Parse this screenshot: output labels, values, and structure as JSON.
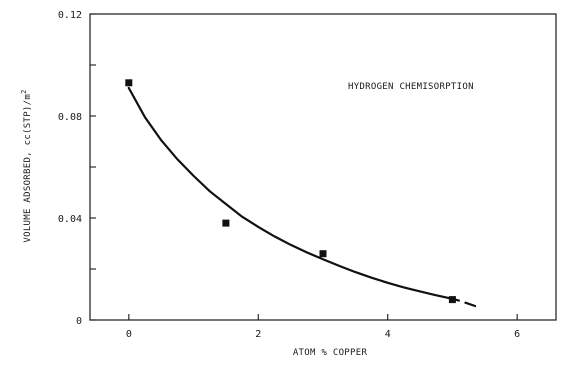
{
  "chart_data": {
    "type": "scatter",
    "xlabel": "ATOM % COPPER",
    "ylabel": "VOLUME ADSORBED, cc(STP)/m",
    "ylabel_superscript": "2",
    "annotation": "HYDROGEN CHEMISORPTION",
    "xlim": [
      -0.6,
      6.6
    ],
    "ylim": [
      0,
      0.12
    ],
    "x_ticks": [
      0,
      2,
      4,
      6
    ],
    "x_tick_labels": [
      "0",
      "2",
      "4",
      "6"
    ],
    "y_ticks": [
      0,
      0.02,
      0.04,
      0.06,
      0.08,
      0.1,
      0.12
    ],
    "y_tick_labels": [
      "0",
      "",
      "0.04",
      "",
      "0.08",
      "",
      "0.12"
    ],
    "grid": false,
    "legend": "none",
    "series": [
      {
        "kind": "points",
        "marker": "square",
        "x": [
          0,
          1.5,
          3.0,
          5.0
        ],
        "y": [
          0.093,
          0.038,
          0.026,
          0.008
        ]
      },
      {
        "kind": "fitted-curve",
        "x": [
          0.0,
          0.25,
          0.5,
          0.75,
          1.0,
          1.25,
          1.5,
          1.75,
          2.0,
          2.25,
          2.5,
          2.75,
          3.0,
          3.25,
          3.5,
          3.75,
          4.0,
          4.25,
          4.5,
          4.75,
          5.0,
          5.1
        ],
        "y": [
          0.091,
          0.0795,
          0.0705,
          0.063,
          0.0565,
          0.0505,
          0.0455,
          0.0405,
          0.0365,
          0.0328,
          0.0295,
          0.0265,
          0.0238,
          0.0212,
          0.0188,
          0.0166,
          0.0146,
          0.0128,
          0.0112,
          0.0097,
          0.0083,
          0.0076
        ],
        "tail_x": [
          5.2,
          5.35
        ],
        "tail_y": [
          0.0068,
          0.0055
        ]
      }
    ]
  }
}
